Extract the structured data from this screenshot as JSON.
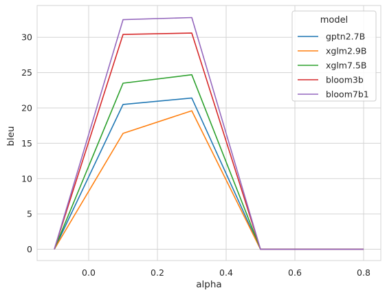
{
  "chart_data": {
    "type": "line",
    "xlabel": "alpha",
    "ylabel": "bleu",
    "x": [
      -0.1,
      0.1,
      0.3,
      0.5,
      0.8
    ],
    "xlim": [
      -0.15,
      0.85
    ],
    "ylim": [
      -1.6,
      34.5
    ],
    "xticks": [
      0.0,
      0.2,
      0.4,
      0.6,
      0.8
    ],
    "xtick_labels": [
      "0.0",
      "0.2",
      "0.4",
      "0.6",
      "0.8"
    ],
    "yticks": [
      0,
      5,
      10,
      15,
      20,
      25,
      30
    ],
    "ytick_labels": [
      "0",
      "5",
      "10",
      "15",
      "20",
      "25",
      "30"
    ],
    "grid": true,
    "legend": {
      "title": "model",
      "placement": "top-right"
    },
    "series": [
      {
        "name": "gptn2.7B",
        "color": "#1f77b4",
        "values": [
          0,
          20.5,
          21.4,
          0,
          0
        ]
      },
      {
        "name": "xglm2.9B",
        "color": "#ff7f0e",
        "values": [
          0,
          16.4,
          19.6,
          0,
          0
        ]
      },
      {
        "name": "xglm7.5B",
        "color": "#2ca02c",
        "values": [
          0,
          23.5,
          24.7,
          0,
          0
        ]
      },
      {
        "name": "bloom3b",
        "color": "#d62728",
        "values": [
          0,
          30.4,
          30.6,
          0,
          0
        ]
      },
      {
        "name": "bloom7b1",
        "color": "#9467bd",
        "values": [
          0,
          32.5,
          32.8,
          0,
          0
        ]
      }
    ]
  }
}
